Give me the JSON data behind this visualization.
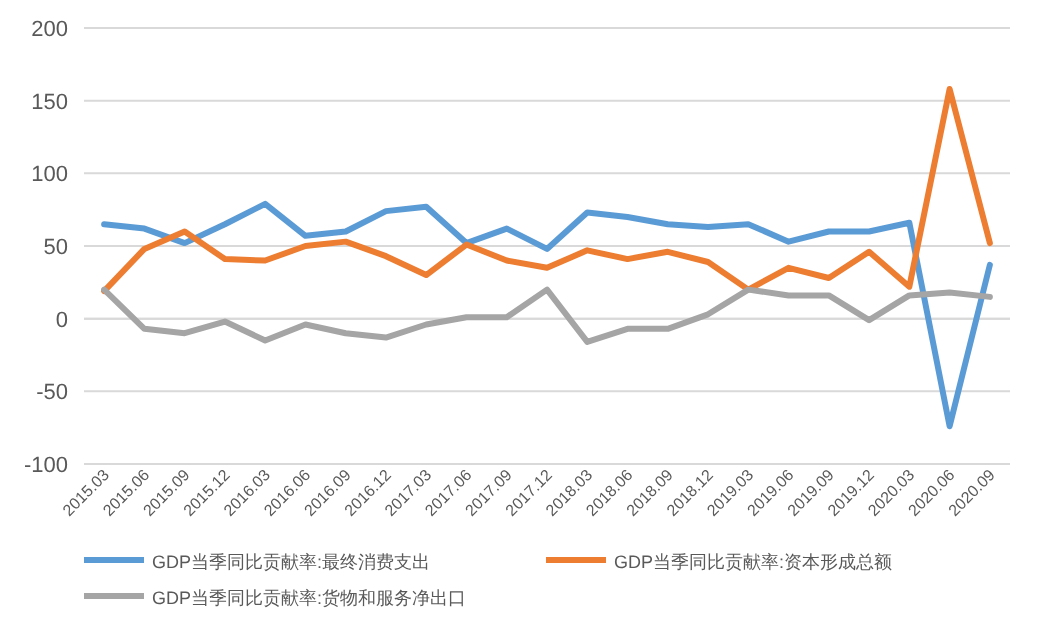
{
  "chart_data": {
    "type": "line",
    "categories": [
      "2015.03",
      "2015.06",
      "2015.09",
      "2015.12",
      "2016.03",
      "2016.06",
      "2016.09",
      "2016.12",
      "2017.03",
      "2017.06",
      "2017.09",
      "2017.12",
      "2018.03",
      "2018.06",
      "2018.09",
      "2018.12",
      "2019.03",
      "2019.06",
      "2019.09",
      "2019.12",
      "2020.03",
      "2020.06",
      "2020.09"
    ],
    "series": [
      {
        "name": "GDP当季同比贡献率:最终消费支出",
        "color": "#5b9bd5",
        "values": [
          65,
          62,
          52,
          65,
          79,
          57,
          60,
          74,
          77,
          52,
          62,
          48,
          73,
          70,
          65,
          63,
          65,
          53,
          60,
          60,
          66,
          -74,
          37
        ]
      },
      {
        "name": "GDP当季同比贡献率:资本形成总额",
        "color": "#ed7d31",
        "values": [
          19,
          48,
          60,
          41,
          40,
          50,
          53,
          43,
          30,
          51,
          40,
          35,
          47,
          41,
          46,
          39,
          20,
          35,
          28,
          46,
          22,
          158,
          52
        ]
      },
      {
        "name": "GDP当季同比贡献率:货物和服务净出口",
        "color": "#a5a5a5",
        "values": [
          20,
          -7,
          -10,
          -2,
          -15,
          -4,
          -10,
          -13,
          -4,
          1,
          1,
          20,
          -16,
          -7,
          -7,
          3,
          20,
          16,
          16,
          -1,
          16,
          18,
          15
        ]
      }
    ],
    "ylim": [
      -100,
      200
    ],
    "yticks": [
      -100,
      -50,
      0,
      50,
      100,
      150,
      200
    ],
    "grid": "y",
    "legend": "bottom",
    "marker": "none",
    "line_style": "solid"
  }
}
